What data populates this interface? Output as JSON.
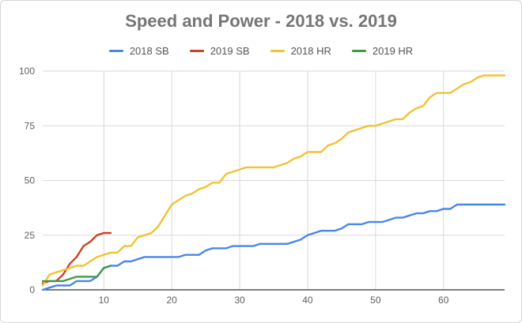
{
  "chart_data": {
    "type": "line",
    "title": "Speed and Power - 2018 vs. 2019",
    "xlim": [
      1,
      69
    ],
    "ylim": [
      0,
      100
    ],
    "x_ticks": [
      10,
      20,
      30,
      40,
      50,
      60
    ],
    "y_ticks": [
      0,
      25,
      50,
      75,
      100
    ],
    "grid": "horizontal and vertical",
    "legend_position": "top",
    "series": [
      {
        "name": "2018 SB",
        "color": "#4a86e8",
        "x": [
          1,
          2,
          3,
          4,
          5,
          6,
          7,
          8,
          9,
          10,
          11,
          12,
          13,
          14,
          15,
          16,
          17,
          18,
          19,
          20,
          21,
          22,
          23,
          24,
          25,
          26,
          27,
          28,
          29,
          30,
          31,
          32,
          33,
          34,
          35,
          36,
          37,
          38,
          39,
          40,
          41,
          42,
          43,
          44,
          45,
          46,
          47,
          48,
          49,
          50,
          51,
          52,
          53,
          54,
          55,
          56,
          57,
          58,
          59,
          60,
          61,
          62,
          63,
          64,
          65,
          66,
          67,
          68,
          69
        ],
        "values": [
          0,
          1,
          2,
          2,
          2,
          4,
          4,
          4,
          6,
          10,
          11,
          11,
          13,
          13,
          14,
          15,
          15,
          15,
          15,
          15,
          15,
          16,
          16,
          16,
          18,
          19,
          19,
          19,
          20,
          20,
          20,
          20,
          21,
          21,
          21,
          21,
          21,
          22,
          23,
          25,
          26,
          27,
          27,
          27,
          28,
          30,
          30,
          30,
          31,
          31,
          31,
          32,
          33,
          33,
          34,
          35,
          35,
          36,
          36,
          37,
          37,
          39,
          39,
          39,
          39,
          39,
          39,
          39,
          39
        ]
      },
      {
        "name": "2019 SB",
        "color": "#cc4125",
        "x": [
          1,
          2,
          3,
          4,
          5,
          6,
          7,
          8,
          9,
          10,
          11
        ],
        "values": [
          3,
          4,
          4,
          7,
          12,
          15,
          20,
          22,
          25,
          26,
          26
        ]
      },
      {
        "name": "2018 HR",
        "color": "#f1c232",
        "x": [
          1,
          2,
          3,
          4,
          5,
          6,
          7,
          8,
          9,
          10,
          11,
          12,
          13,
          14,
          15,
          16,
          17,
          18,
          19,
          20,
          21,
          22,
          23,
          24,
          25,
          26,
          27,
          28,
          29,
          30,
          31,
          32,
          33,
          34,
          35,
          36,
          37,
          38,
          39,
          40,
          41,
          42,
          43,
          44,
          45,
          46,
          47,
          48,
          49,
          50,
          51,
          52,
          53,
          54,
          55,
          56,
          57,
          58,
          59,
          60,
          61,
          62,
          63,
          64,
          65,
          66,
          67,
          68,
          69
        ],
        "values": [
          2,
          7,
          8,
          9,
          10,
          11,
          11,
          13,
          15,
          16,
          17,
          17,
          20,
          20,
          24,
          25,
          26,
          29,
          34,
          39,
          41,
          43,
          44,
          46,
          47,
          49,
          49,
          53,
          54,
          55,
          56,
          56,
          56,
          56,
          56,
          57,
          58,
          60,
          61,
          63,
          63,
          63,
          66,
          67,
          69,
          72,
          73,
          74,
          75,
          75,
          76,
          77,
          78,
          78,
          81,
          83,
          84,
          88,
          90,
          90,
          90,
          92,
          94,
          95,
          97,
          98,
          98,
          98,
          98
        ]
      },
      {
        "name": "2019 HR",
        "color": "#3d9a4a",
        "x": [
          1,
          2,
          3,
          4,
          5,
          6,
          7,
          8,
          9,
          10,
          11
        ],
        "values": [
          4,
          4,
          4,
          4,
          5,
          6,
          6,
          6,
          6,
          10,
          11
        ]
      }
    ]
  }
}
